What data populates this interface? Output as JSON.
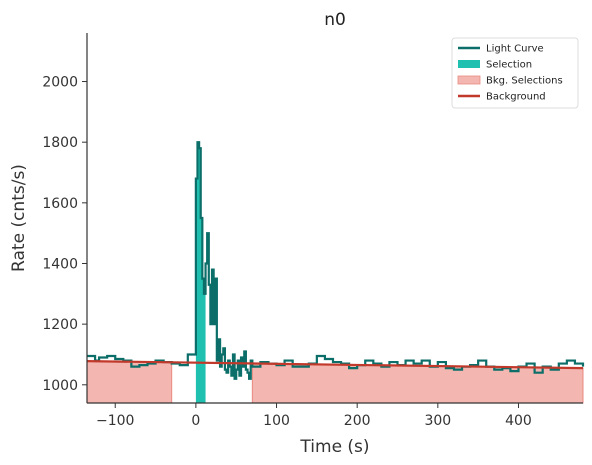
{
  "chart_data": {
    "type": "line",
    "title": "n0",
    "xlabel": "Time (s)",
    "ylabel": "Rate (cnts/s)",
    "xlim": [
      -135,
      480
    ],
    "ylim": [
      940,
      2160
    ],
    "xticks": [
      -100,
      0,
      100,
      200,
      300,
      400
    ],
    "yticks": [
      1000,
      1200,
      1400,
      1600,
      1800,
      2000
    ],
    "legend_position": "top-right",
    "grid": false,
    "colors": {
      "light_curve": "#0b6e69",
      "selection": "#20c0b0",
      "bkg_selection": "#f4b6b0",
      "bkg_selection_edge": "#e88a80",
      "background": "#c0392b",
      "axis": "#333333"
    },
    "legend": [
      {
        "label": "Light Curve",
        "kind": "line",
        "color": "#0b6e69"
      },
      {
        "label": "Selection",
        "kind": "patch",
        "color": "#20c0b0"
      },
      {
        "label": "Bkg. Selections",
        "kind": "patch",
        "color": "#f4b6b0"
      },
      {
        "label": "Background",
        "kind": "line",
        "color": "#c0392b"
      }
    ],
    "selection": {
      "start": 0,
      "end": 12
    },
    "bkg_selections": [
      {
        "start": -135,
        "end": -30
      },
      {
        "start": 70,
        "end": 480
      }
    ],
    "background_fit": {
      "x": [
        -135,
        480
      ],
      "y": [
        1078,
        1055
      ]
    },
    "light_curve": {
      "x": [
        -135,
        -125,
        -120,
        -110,
        -100,
        -90,
        -80,
        -70,
        -60,
        -50,
        -40,
        -30,
        -20,
        -10,
        0,
        2,
        4,
        6,
        8,
        10,
        12,
        14,
        16,
        18,
        20,
        22,
        24,
        26,
        28,
        30,
        32,
        34,
        36,
        38,
        40,
        42,
        44,
        46,
        48,
        50,
        52,
        54,
        56,
        58,
        60,
        62,
        64,
        66,
        68,
        70,
        80,
        90,
        100,
        110,
        120,
        130,
        140,
        150,
        160,
        170,
        180,
        190,
        200,
        210,
        220,
        230,
        240,
        250,
        260,
        270,
        280,
        290,
        300,
        310,
        320,
        330,
        340,
        350,
        360,
        370,
        380,
        390,
        400,
        410,
        420,
        430,
        440,
        450,
        460,
        470,
        480
      ],
      "y": [
        1095,
        1080,
        1090,
        1095,
        1085,
        1080,
        1060,
        1065,
        1070,
        1080,
        1075,
        1070,
        1065,
        1100,
        1680,
        1800,
        1780,
        1550,
        1350,
        1300,
        1400,
        1500,
        1330,
        1200,
        1380,
        1200,
        1350,
        1080,
        1150,
        1060,
        1100,
        1120,
        1050,
        1040,
        1080,
        1060,
        1030,
        1100,
        1020,
        1050,
        1080,
        1030,
        1090,
        1060,
        1110,
        1050,
        1040,
        1020,
        1080,
        1060,
        1075,
        1070,
        1065,
        1080,
        1060,
        1060,
        1070,
        1095,
        1085,
        1075,
        1070,
        1055,
        1065,
        1080,
        1070,
        1060,
        1075,
        1065,
        1080,
        1070,
        1080,
        1060,
        1075,
        1055,
        1050,
        1060,
        1065,
        1080,
        1060,
        1050,
        1055,
        1045,
        1060,
        1070,
        1040,
        1060,
        1050,
        1070,
        1080,
        1070,
        1060
      ]
    }
  }
}
